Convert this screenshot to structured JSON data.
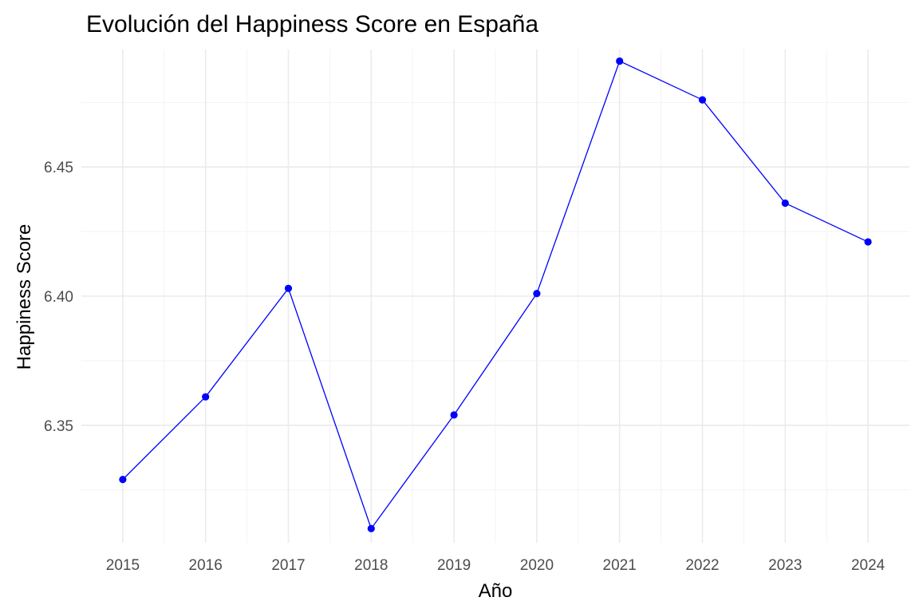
{
  "chart_data": {
    "type": "line",
    "title": "Evolución del Happiness Score en España",
    "xlabel": "Año",
    "ylabel": "Happiness Score",
    "x": [
      2015,
      2016,
      2017,
      2018,
      2019,
      2020,
      2021,
      2022,
      2023,
      2024
    ],
    "y": [
      6.329,
      6.361,
      6.403,
      6.31,
      6.354,
      6.401,
      6.491,
      6.476,
      6.436,
      6.421
    ],
    "xlim": [
      2014.5,
      2024.5
    ],
    "ylim": [
      6.3045,
      6.4955
    ],
    "x_ticks": [
      2015,
      2016,
      2017,
      2018,
      2019,
      2020,
      2021,
      2022,
      2023,
      2024
    ],
    "x_tick_labels": [
      "2015",
      "2016",
      "2017",
      "2018",
      "2019",
      "2020",
      "2021",
      "2022",
      "2023",
      "2024"
    ],
    "y_ticks": [
      6.35,
      6.4,
      6.45
    ],
    "y_tick_labels": [
      "6.35",
      "6.40",
      "6.45"
    ],
    "grid": true,
    "legend": "none",
    "line_color": "#0000ff"
  }
}
